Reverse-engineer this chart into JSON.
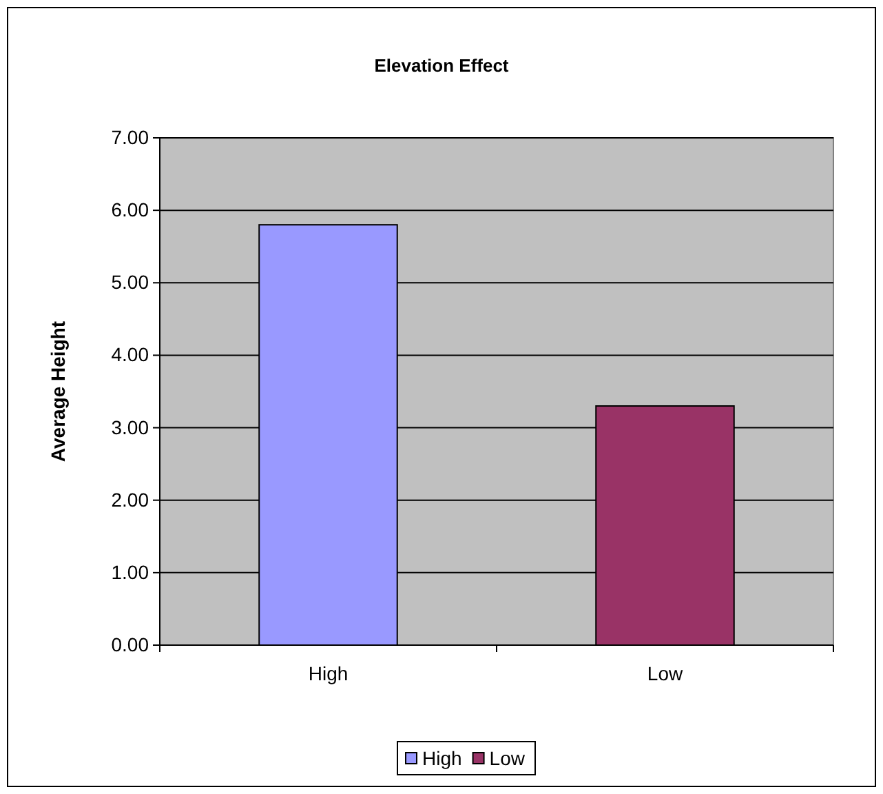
{
  "chart_data": {
    "type": "bar",
    "title": "Elevation Effect",
    "ylabel": "Average Height",
    "categories": [
      "High",
      "Low"
    ],
    "series": [
      {
        "name": "High",
        "color": "#9999ff",
        "values": [
          5.8,
          null
        ]
      },
      {
        "name": "Low",
        "color": "#993366",
        "values": [
          null,
          3.3
        ]
      }
    ],
    "ylim": [
      0,
      7
    ],
    "yticks": [
      {
        "value": 0,
        "label": "0.00"
      },
      {
        "value": 1,
        "label": "1.00"
      },
      {
        "value": 2,
        "label": "2.00"
      },
      {
        "value": 3,
        "label": "3.00"
      },
      {
        "value": 4,
        "label": "4.00"
      },
      {
        "value": 5,
        "label": "5.00"
      },
      {
        "value": 6,
        "label": "6.00"
      },
      {
        "value": 7,
        "label": "7.00"
      }
    ],
    "grid": "y",
    "legend": "bottom"
  }
}
